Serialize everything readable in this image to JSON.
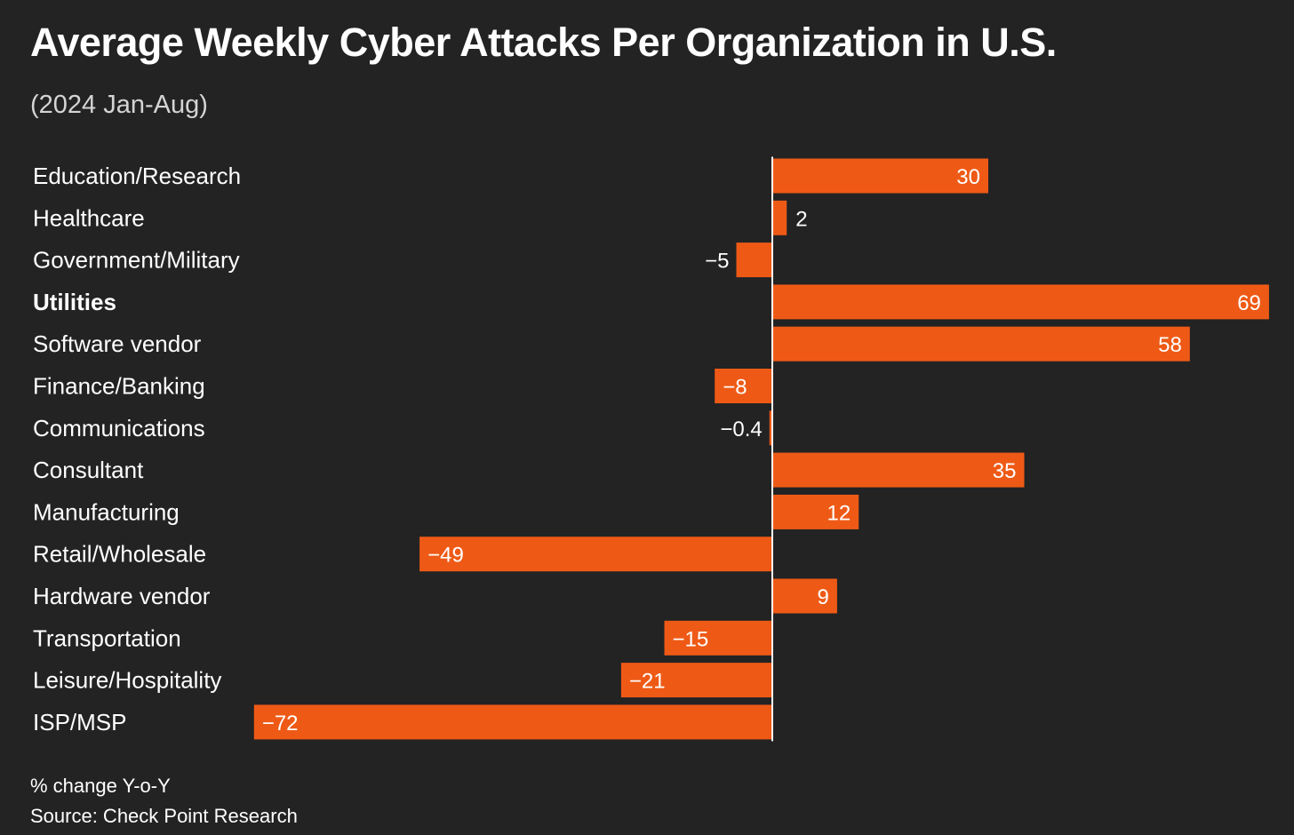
{
  "chart_data": {
    "type": "bar",
    "orientation": "horizontal",
    "title": "Average Weekly Cyber Attacks Per Organization in U.S.",
    "subtitle": "(2024 Jan-Aug)",
    "note": "% change Y-o-Y",
    "source": "Source: Check Point Research",
    "xlim": [
      -72,
      69
    ],
    "bar_color": "#ee5a16",
    "highlight_category": "Utilities",
    "categories": [
      "Education/Research",
      "Healthcare",
      "Government/Military",
      "Utilities",
      "Software vendor",
      "Finance/Banking",
      "Communications",
      "Consultant",
      "Manufacturing",
      "Retail/Wholesale",
      "Hardware vendor",
      "Transportation",
      "Leisure/Hospitality",
      "ISP/MSP"
    ],
    "values": [
      30,
      2,
      -5,
      69,
      58,
      -8,
      -0.4,
      35,
      12,
      -49,
      9,
      -15,
      -21,
      -72
    ],
    "value_labels": [
      "30",
      "2",
      "−5",
      "69",
      "58",
      "−8",
      "−0.4",
      "35",
      "12",
      "−49",
      "9",
      "−15",
      "−21",
      "−72"
    ]
  }
}
